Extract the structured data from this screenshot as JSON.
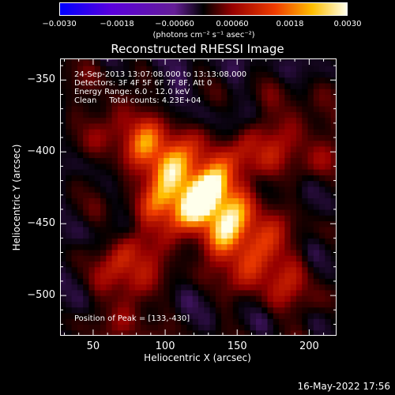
{
  "chart_data": {
    "type": "heatmap",
    "title": "Reconstructed RHESSI Image",
    "xlabel": "Heliocentric X (arcsec)",
    "ylabel": "Heliocentric Y (arcsec)",
    "xlim": [
      27,
      219
    ],
    "ylim": [
      -528,
      -335
    ],
    "x_ticks": [
      "50",
      "100",
      "150",
      "200"
    ],
    "x_tick_values": [
      50,
      100,
      150,
      200
    ],
    "y_ticks": [
      "−350",
      "−400",
      "−450",
      "−500"
    ],
    "y_tick_values": [
      -350,
      -400,
      -450,
      -500
    ],
    "colorbar": {
      "ticks": [
        "−0.0030",
        "−0.0018",
        "−0.00060",
        "0.00060",
        "0.0018",
        "0.0030"
      ],
      "tick_values": [
        -0.003,
        -0.0018,
        -0.0006,
        0.0006,
        0.0018,
        0.003
      ],
      "range": [
        -0.003,
        0.003
      ],
      "units": "(photons cm⁻² s⁻¹ asec⁻²)"
    },
    "annotations": {
      "time": "24-Sep-2013 13:07:08.000 to 13:13:08.000",
      "detectors": "Detectors: 3F 4F 5F 6F 7F 8F, Att 0",
      "energy": "Energy Range: 6.0 - 12.0 keV",
      "clean": "Clean     Total counts: 4.23E+04",
      "peak": "Position of Peak = [133,-430]"
    },
    "peak_position": [
      133,
      -430
    ]
  },
  "footer": {
    "date": "16-May-2022 17:56"
  }
}
